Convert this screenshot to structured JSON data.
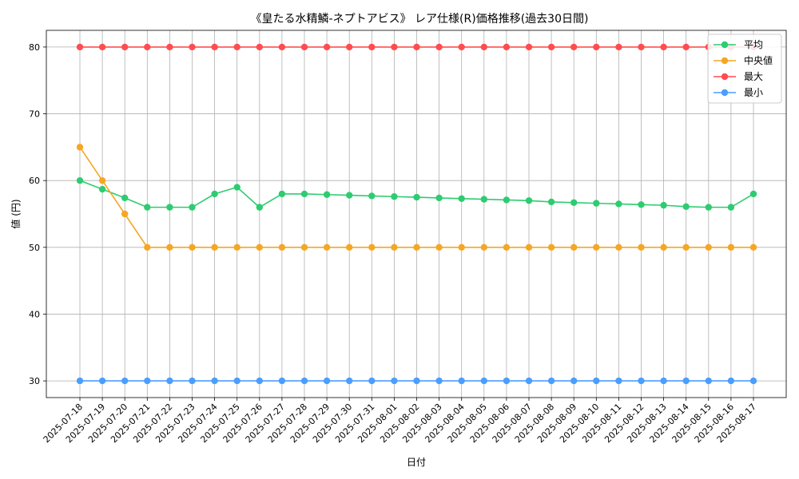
{
  "chart_data": {
    "type": "line",
    "title": "《皇たる水精鱗-ネプトアビス》 レア仕様(R)価格推移(過去30日間)",
    "xlabel": "日付",
    "ylabel": "値 (円)",
    "ylim": [
      27.5,
      82.5
    ],
    "yticks": [
      30,
      40,
      50,
      60,
      70,
      80
    ],
    "grid": true,
    "legend_position": "top-right",
    "categories": [
      "2025-07-18",
      "2025-07-19",
      "2025-07-20",
      "2025-07-21",
      "2025-07-22",
      "2025-07-23",
      "2025-07-24",
      "2025-07-25",
      "2025-07-26",
      "2025-07-27",
      "2025-07-28",
      "2025-07-29",
      "2025-07-30",
      "2025-07-31",
      "2025-08-01",
      "2025-08-02",
      "2025-08-03",
      "2025-08-04",
      "2025-08-05",
      "2025-08-06",
      "2025-08-07",
      "2025-08-08",
      "2025-08-09",
      "2025-08-10",
      "2025-08-11",
      "2025-08-12",
      "2025-08-13",
      "2025-08-14",
      "2025-08-15",
      "2025-08-16",
      "2025-08-17"
    ],
    "series": [
      {
        "name": "平均",
        "color": "#2ecc71",
        "values": [
          60,
          58.7,
          57.4,
          56,
          56,
          56,
          58,
          59,
          56,
          58,
          58,
          57.9,
          57.8,
          57.7,
          57.6,
          57.5,
          57.4,
          57.3,
          57.2,
          57.1,
          57.0,
          56.8,
          56.7,
          56.6,
          56.5,
          56.4,
          56.3,
          56.1,
          56,
          56,
          58
        ]
      },
      {
        "name": "中央値",
        "color": "#f5a623",
        "values": [
          65,
          60,
          55,
          50,
          50,
          50,
          50,
          50,
          50,
          50,
          50,
          50,
          50,
          50,
          50,
          50,
          50,
          50,
          50,
          50,
          50,
          50,
          50,
          50,
          50,
          50,
          50,
          50,
          50,
          50,
          50
        ]
      },
      {
        "name": "最大",
        "color": "#ff4d4f",
        "values": [
          80,
          80,
          80,
          80,
          80,
          80,
          80,
          80,
          80,
          80,
          80,
          80,
          80,
          80,
          80,
          80,
          80,
          80,
          80,
          80,
          80,
          80,
          80,
          80,
          80,
          80,
          80,
          80,
          80,
          80,
          80
        ]
      },
      {
        "name": "最小",
        "color": "#4a9eff",
        "values": [
          30,
          30,
          30,
          30,
          30,
          30,
          30,
          30,
          30,
          30,
          30,
          30,
          30,
          30,
          30,
          30,
          30,
          30,
          30,
          30,
          30,
          30,
          30,
          30,
          30,
          30,
          30,
          30,
          30,
          30,
          30
        ]
      }
    ]
  }
}
